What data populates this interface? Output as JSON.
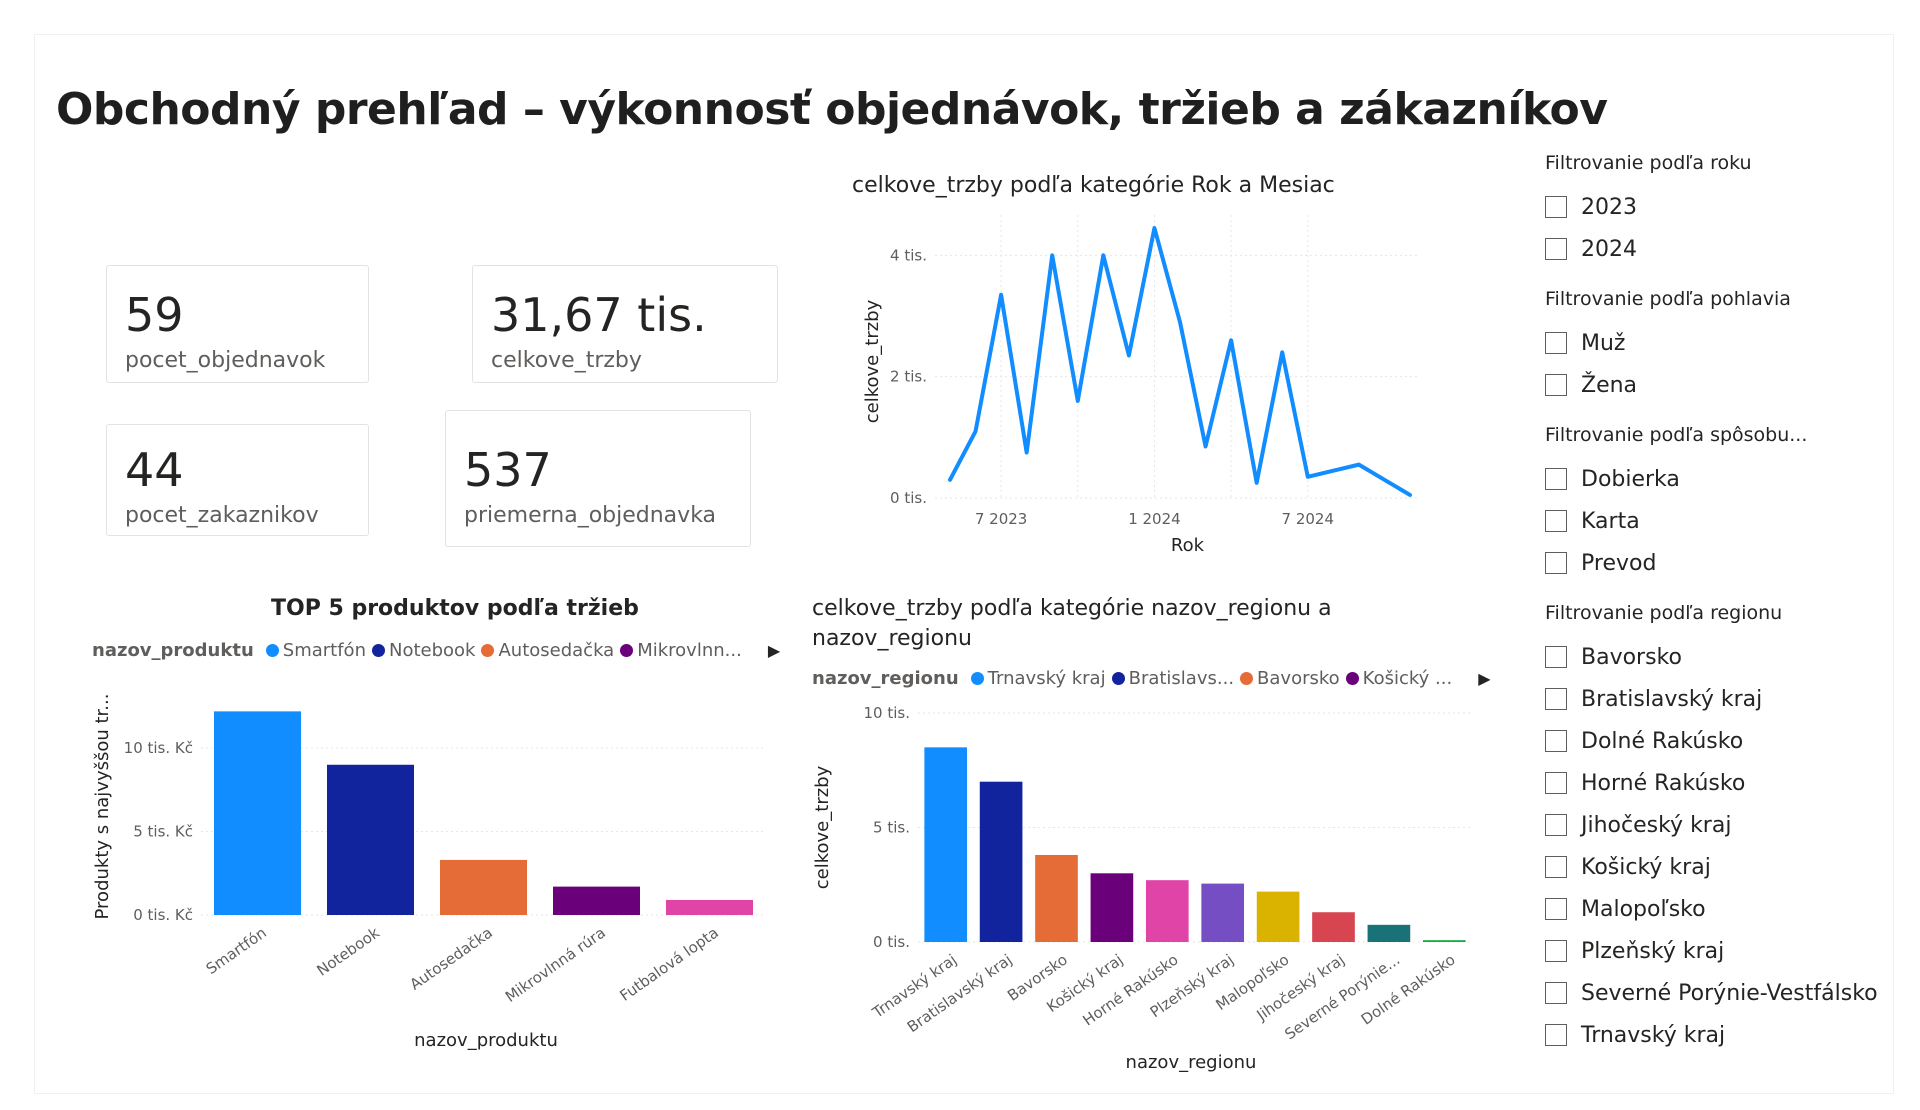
{
  "title": "Obchodný prehľad – výkonnosť objednávok, tržieb a zákazníkov",
  "cards": {
    "orders": {
      "value": "59",
      "label": "pocet_objednavok"
    },
    "sales": {
      "value": "31,67 tis.",
      "label": "celkove_trzby"
    },
    "customers": {
      "value": "44",
      "label": "pocet_zakaznikov"
    },
    "avg": {
      "value": "537",
      "label": "priemerna_objednavka"
    }
  },
  "line_chart": {
    "title": "celkove_trzby podľa kategórie Rok a Mesiac",
    "xlabel": "Rok",
    "ylabel": "celkove_trzby",
    "color": "#118DFF"
  },
  "products_chart": {
    "title": "TOP 5 produktov podľa tržieb",
    "legend_title": "nazov_produktu",
    "legend_items": [
      "Smartfón",
      "Notebook",
      "Autosedačka",
      "Mikrovlnn..."
    ],
    "legend_colors": [
      "#118DFF",
      "#12239E",
      "#E66C37",
      "#6B007B"
    ],
    "xlabel": "nazov_produktu",
    "ylabel": "Produkty s najvyššou tr..."
  },
  "regions_chart": {
    "title_line1": "celkove_trzby podľa kategórie nazov_regionu a",
    "title_line2": "nazov_regionu",
    "legend_title": "nazov_regionu",
    "legend_items": [
      "Trnavský kraj",
      "Bratislavs...",
      "Bavorsko",
      "Košický ..."
    ],
    "legend_colors": [
      "#118DFF",
      "#12239E",
      "#E66C37",
      "#6B007B"
    ],
    "xlabel": "nazov_regionu",
    "ylabel": "celkove_trzby"
  },
  "chart_data": [
    {
      "type": "line",
      "title": "celkove_trzby podľa kategórie Rok a Mesiac",
      "xlabel": "Rok",
      "ylabel": "celkove_trzby",
      "x_tick_labels": [
        "7 2023",
        "1 2024",
        "7 2024"
      ],
      "y_tick_labels": [
        "0 tis.",
        "2 tis.",
        "4 tis."
      ],
      "x": [
        "2023-05",
        "2023-06",
        "2023-07",
        "2023-08",
        "2023-09",
        "2023-10",
        "2023-11",
        "2023-12",
        "2024-01",
        "2024-02",
        "2024-03",
        "2024-04",
        "2024-05",
        "2024-06",
        "2024-07",
        "2024-08",
        "2024-09",
        "2024-10",
        "2024-11"
      ],
      "series": [
        {
          "values": [
            300,
            1100,
            3350,
            750,
            4000,
            1600,
            4000,
            2350,
            4450,
            2900,
            850,
            2600,
            250,
            2400,
            350,
            450,
            550,
            300,
            50
          ]
        }
      ],
      "ylim": [
        0,
        4500
      ],
      "grid": true
    },
    {
      "type": "bar",
      "title": "TOP 5 produktov podľa tržieb",
      "xlabel": "nazov_produktu",
      "ylabel": "Produkty s najvyššou tr...",
      "categories": [
        "Smartfón",
        "Notebook",
        "Autosedačka",
        "Mikrovlnná rúra",
        "Futbalová lopta"
      ],
      "values": [
        12200,
        9000,
        3300,
        1700,
        900
      ],
      "colors": [
        "#118DFF",
        "#12239E",
        "#E66C37",
        "#6B007B",
        "#E044A7"
      ],
      "y_tick_labels": [
        "0 tis. Kč",
        "5 tis. Kč",
        "10 tis. Kč"
      ],
      "ylim": [
        0,
        13000
      ],
      "grid": true
    },
    {
      "type": "bar",
      "title": "celkove_trzby podľa kategórie nazov_regionu a nazov_regionu",
      "xlabel": "nazov_regionu",
      "ylabel": "celkove_trzby",
      "categories": [
        "Trnavský kraj",
        "Bratislavský kraj",
        "Bavorsko",
        "Košický kraj",
        "Horné Rakúsko",
        "Plzeňský kraj",
        "Malopoľsko",
        "Jihočeský kraj",
        "Severné Porýnie...",
        "Dolné Rakúsko"
      ],
      "values": [
        8500,
        7000,
        3800,
        3000,
        2700,
        2550,
        2200,
        1300,
        750,
        80
      ],
      "colors": [
        "#118DFF",
        "#12239E",
        "#E66C37",
        "#6B007B",
        "#E044A7",
        "#744EC2",
        "#D9B300",
        "#D64550",
        "#197278",
        "#1AAB40"
      ],
      "y_tick_labels": [
        "0 tis.",
        "5 tis.",
        "10 tis."
      ],
      "ylim": [
        0,
        10000
      ],
      "grid": true
    }
  ],
  "slicers": [
    {
      "header": "Filtrovanie podľa roku",
      "options": [
        "2023",
        "2024"
      ]
    },
    {
      "header": "Filtrovanie podľa pohlavia",
      "options": [
        "Muž",
        "Žena"
      ]
    },
    {
      "header": "Filtrovanie podľa spôsobu...",
      "options": [
        "Dobierka",
        "Karta",
        "Prevod"
      ]
    },
    {
      "header": "Filtrovanie podľa regionu",
      "options": [
        "Bavorsko",
        "Bratislavský kraj",
        "Dolné Rakúsko",
        "Horné Rakúsko",
        "Jihočeský kraj",
        "Košický kraj",
        "Malopoľsko",
        "Plzeňský kraj",
        "Severné Porýnie-Vestfálsko",
        "Trnavský kraj"
      ]
    }
  ]
}
